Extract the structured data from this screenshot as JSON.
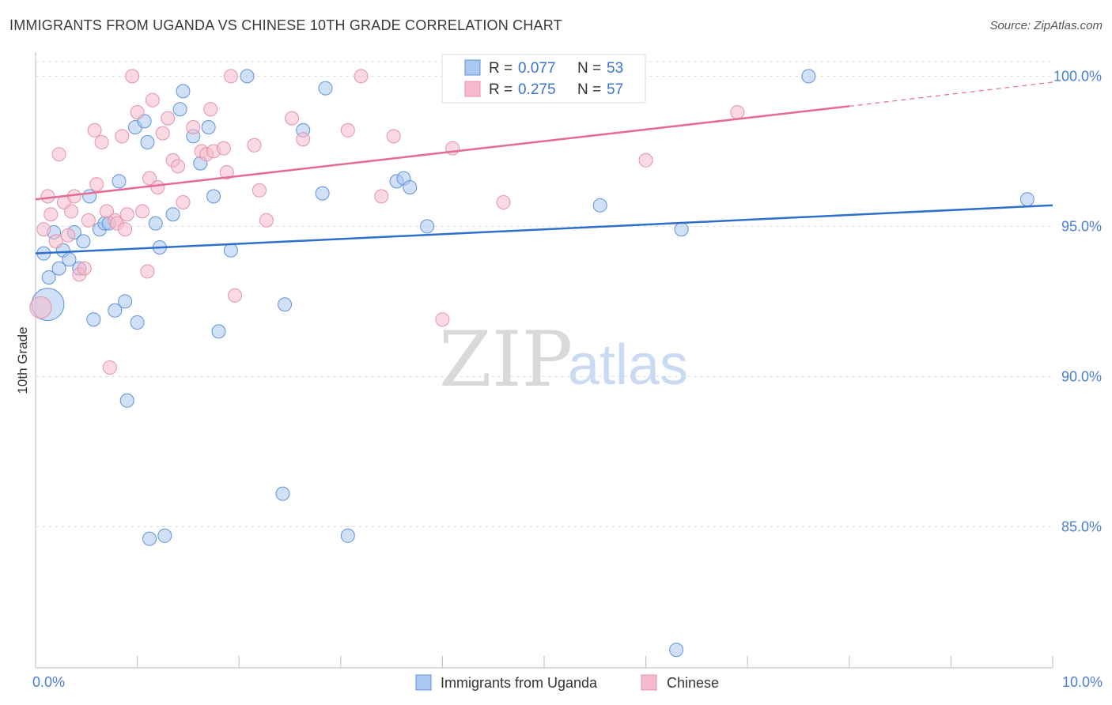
{
  "title": "IMMIGRANTS FROM UGANDA VS CHINESE 10TH GRADE CORRELATION CHART",
  "source": "Source: ZipAtlas.com",
  "watermark": {
    "zip": "ZIP",
    "atlas": "atlas"
  },
  "colors": {
    "uganda_fill": "#a9c7f0",
    "uganda_stroke": "#5f93d8",
    "uganda_line": "#2f6fcc",
    "chinese_fill": "#f6b9cb",
    "chinese_stroke": "#e493ab",
    "chinese_line": "#e56b94",
    "axis_label": "#4a7fd0",
    "grid": "#dddddd"
  },
  "legend": {
    "uganda": {
      "r_label": "R =",
      "r_value": "0.077",
      "n_label": "N =",
      "n_value": "53"
    },
    "chinese": {
      "r_label": "R =",
      "r_value": "0.275",
      "n_label": "N =",
      "n_value": "57"
    }
  },
  "bottom_legend": {
    "uganda": "Immigrants from Uganda",
    "chinese": "Chinese"
  },
  "chart_data": {
    "type": "scatter",
    "xlabel": "",
    "ylabel": "10th Grade",
    "xlim": [
      0,
      10
    ],
    "ylim": [
      80.3,
      100.8
    ],
    "x_tick_labels": {
      "min": "0.0%",
      "max": "10.0%"
    },
    "y_ticks": [
      {
        "value": 100,
        "label": "100.0%"
      },
      {
        "value": 95,
        "label": "95.0%"
      },
      {
        "value": 90,
        "label": "90.0%"
      },
      {
        "value": 85,
        "label": "85.0%"
      }
    ],
    "series": [
      {
        "name": "Immigrants from Uganda",
        "key": "uganda",
        "trend": {
          "x0": 0,
          "y0": 94.1,
          "x1": 10,
          "y1": 95.7
        },
        "points": [
          [
            0.12,
            92.4,
            2.4
          ],
          [
            0.08,
            94.1,
            1
          ],
          [
            0.13,
            93.3,
            1
          ],
          [
            0.18,
            94.8,
            1
          ],
          [
            0.23,
            93.6,
            1
          ],
          [
            0.27,
            94.2,
            1
          ],
          [
            0.33,
            93.9,
            1
          ],
          [
            0.38,
            94.8,
            1
          ],
          [
            0.43,
            93.6,
            1
          ],
          [
            0.47,
            94.5,
            1
          ],
          [
            0.53,
            96.0,
            1
          ],
          [
            0.57,
            91.9,
            1
          ],
          [
            0.63,
            94.9,
            1
          ],
          [
            0.68,
            95.1,
            1
          ],
          [
            0.72,
            95.1,
            1
          ],
          [
            0.78,
            92.2,
            1
          ],
          [
            0.82,
            96.5,
            1
          ],
          [
            0.88,
            92.5,
            1
          ],
          [
            0.9,
            89.2,
            1
          ],
          [
            0.98,
            98.3,
            1
          ],
          [
            1.0,
            91.8,
            1
          ],
          [
            1.07,
            98.5,
            1
          ],
          [
            1.1,
            97.8,
            1
          ],
          [
            1.12,
            84.6,
            1
          ],
          [
            1.18,
            95.1,
            1
          ],
          [
            1.22,
            94.3,
            1
          ],
          [
            1.27,
            84.7,
            1
          ],
          [
            1.35,
            95.4,
            1
          ],
          [
            1.42,
            98.9,
            1
          ],
          [
            1.45,
            99.5,
            1
          ],
          [
            1.55,
            98.0,
            1
          ],
          [
            1.62,
            97.1,
            1
          ],
          [
            1.7,
            98.3,
            1
          ],
          [
            1.75,
            96.0,
            1
          ],
          [
            1.8,
            91.5,
            1
          ],
          [
            1.92,
            94.2,
            1
          ],
          [
            2.08,
            100.0,
            1
          ],
          [
            2.43,
            86.1,
            1
          ],
          [
            2.45,
            92.4,
            1
          ],
          [
            2.63,
            98.2,
            1
          ],
          [
            2.82,
            96.1,
            1
          ],
          [
            2.85,
            99.6,
            1
          ],
          [
            3.07,
            84.7,
            1
          ],
          [
            3.55,
            96.5,
            1
          ],
          [
            3.62,
            96.6,
            1
          ],
          [
            3.68,
            96.3,
            1
          ],
          [
            3.85,
            95.0,
            1
          ],
          [
            5.55,
            95.7,
            1
          ],
          [
            6.3,
            80.9,
            1
          ],
          [
            6.35,
            94.9,
            1
          ],
          [
            7.6,
            100.0,
            1
          ],
          [
            9.75,
            95.9,
            1
          ]
        ]
      },
      {
        "name": "Chinese",
        "key": "chinese",
        "trend": {
          "x0": 0,
          "y0": 95.9,
          "x1": 8.0,
          "y1": 99.0,
          "dash_x1": 10,
          "dash_y1": 99.8
        },
        "points": [
          [
            0.05,
            92.3,
            1.6
          ],
          [
            0.08,
            94.9,
            1
          ],
          [
            0.12,
            96.0,
            1
          ],
          [
            0.15,
            95.4,
            1
          ],
          [
            0.2,
            94.5,
            1
          ],
          [
            0.23,
            97.4,
            1
          ],
          [
            0.28,
            95.8,
            1
          ],
          [
            0.32,
            94.7,
            1
          ],
          [
            0.35,
            95.5,
            1
          ],
          [
            0.38,
            96.0,
            1
          ],
          [
            0.43,
            93.4,
            1
          ],
          [
            0.48,
            93.6,
            1
          ],
          [
            0.52,
            95.2,
            1
          ],
          [
            0.58,
            98.2,
            1
          ],
          [
            0.6,
            96.4,
            1
          ],
          [
            0.65,
            97.8,
            1
          ],
          [
            0.7,
            95.5,
            1
          ],
          [
            0.73,
            90.3,
            1
          ],
          [
            0.78,
            95.2,
            1
          ],
          [
            0.8,
            95.1,
            1
          ],
          [
            0.85,
            98.0,
            1
          ],
          [
            0.88,
            94.9,
            1
          ],
          [
            0.9,
            95.4,
            1
          ],
          [
            0.95,
            100.0,
            1
          ],
          [
            1.0,
            98.8,
            1
          ],
          [
            1.05,
            95.5,
            1
          ],
          [
            1.1,
            93.5,
            1
          ],
          [
            1.12,
            96.6,
            1
          ],
          [
            1.15,
            99.2,
            1
          ],
          [
            1.2,
            96.3,
            1
          ],
          [
            1.25,
            98.1,
            1
          ],
          [
            1.3,
            98.6,
            1
          ],
          [
            1.35,
            97.2,
            1
          ],
          [
            1.4,
            97.0,
            1
          ],
          [
            1.45,
            95.8,
            1
          ],
          [
            1.55,
            98.3,
            1
          ],
          [
            1.63,
            97.5,
            1
          ],
          [
            1.68,
            97.4,
            1
          ],
          [
            1.72,
            98.9,
            1
          ],
          [
            1.75,
            97.5,
            1
          ],
          [
            1.85,
            97.6,
            1
          ],
          [
            1.88,
            96.8,
            1
          ],
          [
            1.92,
            100.0,
            1
          ],
          [
            1.96,
            92.7,
            1
          ],
          [
            2.15,
            97.7,
            1
          ],
          [
            2.2,
            96.2,
            1
          ],
          [
            2.27,
            95.2,
            1
          ],
          [
            2.52,
            98.6,
            1
          ],
          [
            2.63,
            97.9,
            1
          ],
          [
            3.07,
            98.2,
            1
          ],
          [
            3.2,
            100.0,
            1
          ],
          [
            3.4,
            96.0,
            1
          ],
          [
            3.52,
            98.0,
            1
          ],
          [
            4.0,
            91.9,
            1
          ],
          [
            4.1,
            97.6,
            1
          ],
          [
            4.6,
            95.8,
            1
          ],
          [
            6.0,
            97.2,
            1
          ],
          [
            6.9,
            98.8,
            1
          ]
        ]
      }
    ]
  }
}
